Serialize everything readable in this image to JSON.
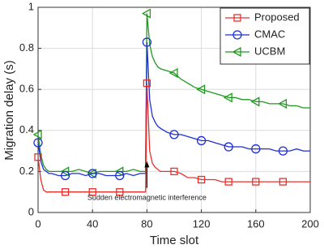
{
  "chart_data": {
    "type": "line",
    "x_label": "Time slot",
    "y_label": "Migration delay (s)",
    "annotation": "Sudden electromagnetic interference",
    "annotation_x": 80,
    "x": [
      0,
      2,
      4,
      6,
      8,
      10,
      15,
      20,
      25,
      30,
      35,
      40,
      45,
      50,
      55,
      60,
      65,
      70,
      75,
      79,
      80,
      82,
      84,
      86,
      88,
      90,
      95,
      100,
      105,
      110,
      115,
      120,
      125,
      130,
      135,
      140,
      145,
      150,
      155,
      160,
      165,
      170,
      175,
      180,
      185,
      190,
      195,
      200
    ],
    "series": [
      {
        "name": "Proposed",
        "color": "#e8302b",
        "marker": "square",
        "values": [
          0.27,
          0.16,
          0.11,
          0.1,
          0.1,
          0.1,
          0.1,
          0.1,
          0.1,
          0.1,
          0.1,
          0.1,
          0.1,
          0.1,
          0.1,
          0.1,
          0.1,
          0.1,
          0.1,
          0.1,
          0.63,
          0.3,
          0.24,
          0.22,
          0.21,
          0.2,
          0.2,
          0.2,
          0.19,
          0.17,
          0.17,
          0.16,
          0.16,
          0.16,
          0.15,
          0.15,
          0.15,
          0.15,
          0.15,
          0.15,
          0.15,
          0.15,
          0.15,
          0.15,
          0.15,
          0.15,
          0.15,
          0.15
        ]
      },
      {
        "name": "CMAC",
        "color": "#1f2fd6",
        "marker": "circle",
        "values": [
          0.34,
          0.25,
          0.21,
          0.2,
          0.19,
          0.19,
          0.18,
          0.18,
          0.19,
          0.19,
          0.18,
          0.19,
          0.19,
          0.18,
          0.18,
          0.18,
          0.19,
          0.18,
          0.19,
          0.19,
          0.83,
          0.55,
          0.47,
          0.44,
          0.42,
          0.41,
          0.39,
          0.38,
          0.38,
          0.37,
          0.36,
          0.35,
          0.35,
          0.34,
          0.33,
          0.32,
          0.32,
          0.32,
          0.31,
          0.31,
          0.31,
          0.31,
          0.3,
          0.3,
          0.3,
          0.31,
          0.3,
          0.3
        ]
      },
      {
        "name": "UCBM",
        "color": "#1f9a1f",
        "marker": "triangle-left",
        "values": [
          0.38,
          0.28,
          0.23,
          0.21,
          0.2,
          0.2,
          0.2,
          0.2,
          0.2,
          0.21,
          0.2,
          0.19,
          0.2,
          0.2,
          0.2,
          0.2,
          0.2,
          0.21,
          0.2,
          0.2,
          0.97,
          0.82,
          0.76,
          0.73,
          0.71,
          0.7,
          0.69,
          0.68,
          0.65,
          0.63,
          0.61,
          0.6,
          0.59,
          0.58,
          0.57,
          0.56,
          0.56,
          0.55,
          0.55,
          0.54,
          0.54,
          0.53,
          0.53,
          0.53,
          0.52,
          0.52,
          0.51,
          0.51
        ]
      }
    ],
    "xlim": [
      0,
      200
    ],
    "xticks": [
      0,
      40,
      80,
      120,
      160,
      200
    ],
    "ylim": [
      0,
      1
    ],
    "yticks": [
      0,
      0.2,
      0.4,
      0.6,
      0.8,
      1
    ],
    "grid": true,
    "legend_loc": "upper right"
  }
}
